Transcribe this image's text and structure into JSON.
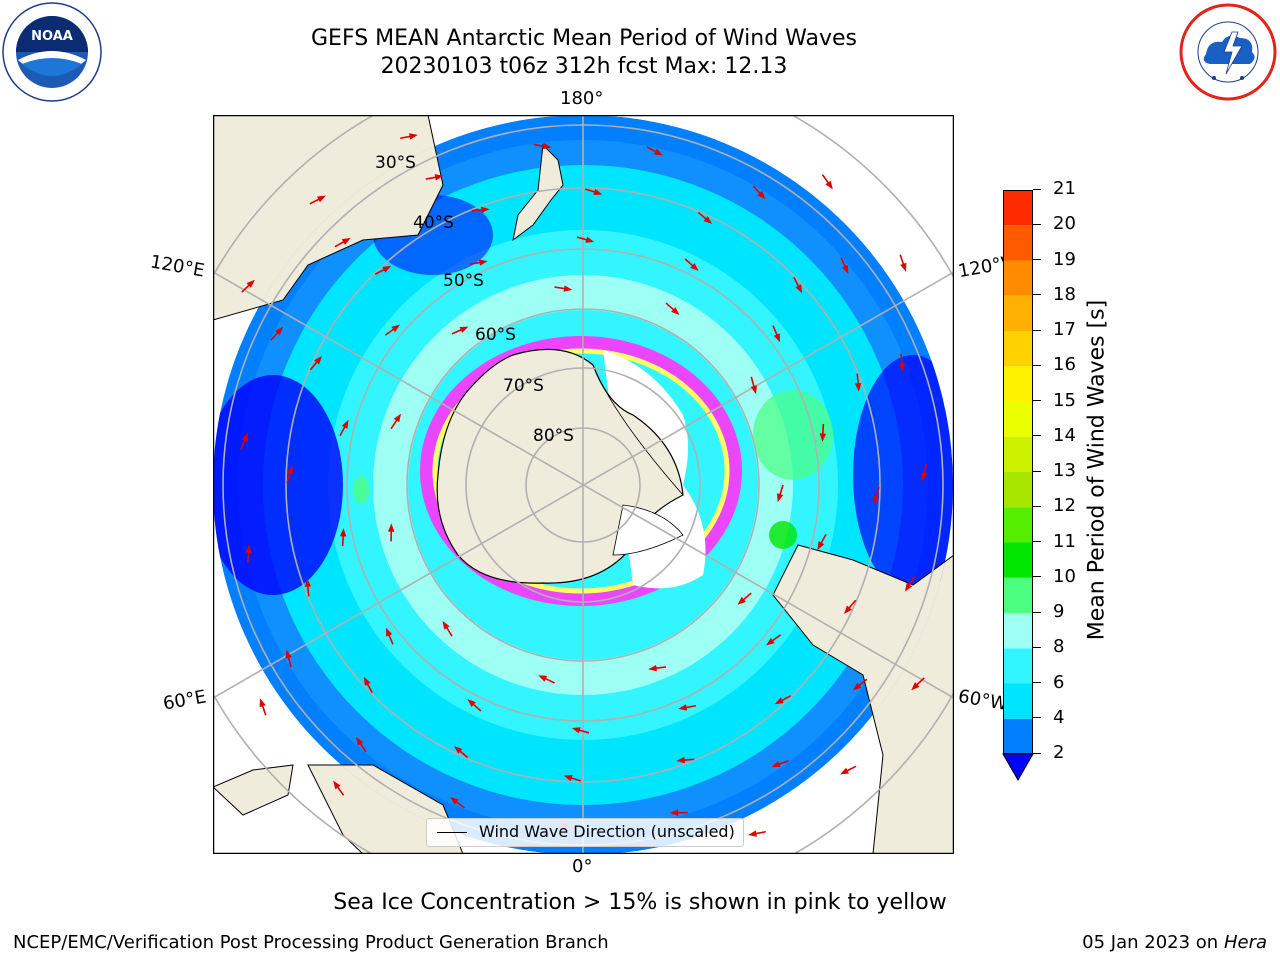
{
  "header": {
    "title_line1": "GEFS MEAN Antarctic Mean Period of Wind Waves",
    "title_line2": "20230103 t06z 312h fcst   Max: 12.13"
  },
  "logos": {
    "left": "noaa-logo",
    "right": "nws-logo"
  },
  "map": {
    "projection": "south-polar-stereographic",
    "longitude_labels": {
      "top": "180°",
      "bottom": "0°",
      "left_upper": "120°E",
      "left_lower": "60°E",
      "right_upper": "120°W",
      "right_lower": "60°W"
    },
    "latitude_labels": [
      "30°S",
      "40°S",
      "50°S",
      "60°S",
      "70°S",
      "80°S"
    ],
    "legend_label": "Wind Wave Direction (unscaled)",
    "land_color": "#efecdc",
    "ice_colors": [
      "#ff33ff",
      "#ffff66",
      "#ffffff"
    ]
  },
  "colorbar": {
    "label": "Mean Period of Wind Waves [s]",
    "ticks": [
      "2",
      "4",
      "6",
      "8",
      "9",
      "10",
      "11",
      "12",
      "13",
      "14",
      "15",
      "16",
      "17",
      "18",
      "19",
      "20",
      "21"
    ],
    "colors": [
      "#0080ff",
      "#00e5ff",
      "#33f5ff",
      "#9efff5",
      "#4dff80",
      "#00e600",
      "#55ee00",
      "#a8e600",
      "#ccf200",
      "#eaff00",
      "#fff200",
      "#ffd200",
      "#ffb000",
      "#ff8c00",
      "#ff5a00",
      "#ff2b00",
      "#ff0000"
    ],
    "extend_color": "#0000ff"
  },
  "footer": {
    "note": "Sea Ice Concentration > 15% is shown in pink to yellow",
    "credit": "NCEP/EMC/Verification Post Processing Product Generation Branch",
    "date": "05 Jan 2023 on ",
    "machine": "Hera"
  }
}
